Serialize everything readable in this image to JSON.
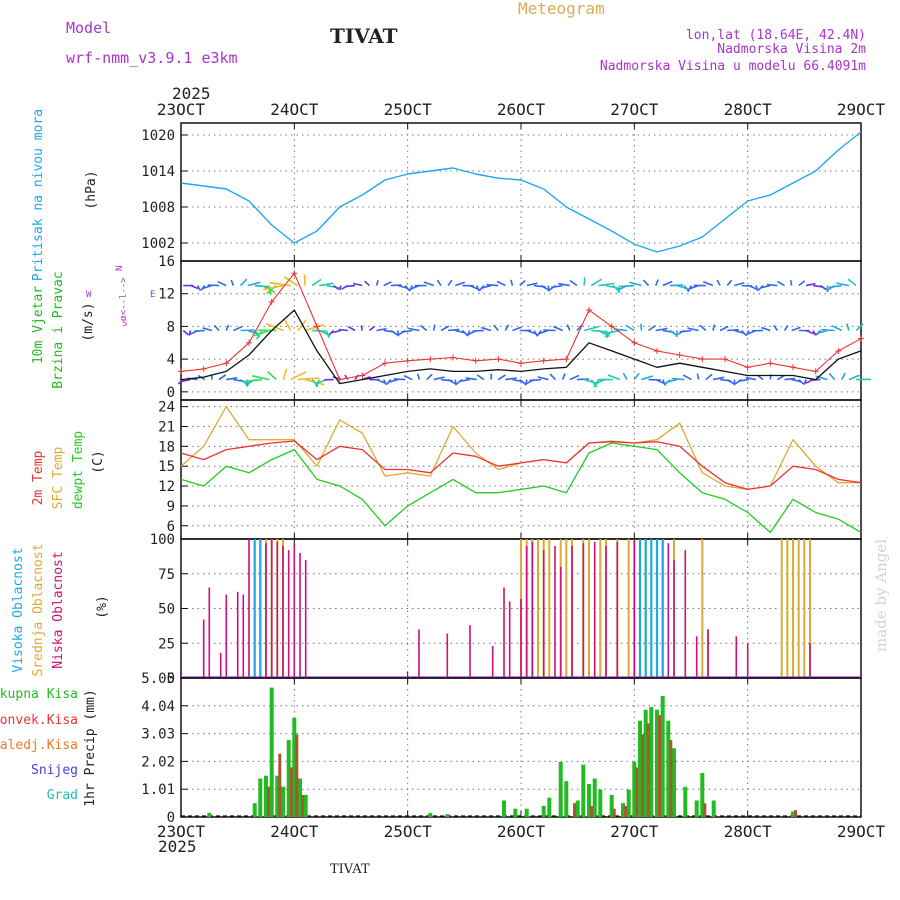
{
  "header": {
    "model_label": "Model",
    "model_name": "wrf-nmm_v3.9.1 e3km",
    "title": "TIVAT",
    "meteogram_label": "Meteogram",
    "coords": "lon,lat (18.64E, 42.4N)",
    "elevation": "Nadmorska Visina 2m",
    "model_elevation": "Nadmorska Visina u modelu 66.4091m",
    "year": "2025",
    "footer_title": "TIVAT",
    "credit": "made by Angel"
  },
  "colors": {
    "pressure": "#1ea8e8",
    "wind_label": "#22bb22",
    "temp2m": "#ee3333",
    "sfc": "#ddaa33",
    "dewpt": "#22cc22",
    "high_cloud": "#1ea8e8",
    "mid_cloud": "#ddaa33",
    "low_cloud": "#cc1177",
    "purple": "#aa33cc",
    "snow": "#4444dd",
    "hail": "#22bbbb",
    "conv": "#ee3333",
    "frz": "#ee7722",
    "total": "#22bb22"
  },
  "chart_data": {
    "type": "meteogram",
    "x_tick_labels": [
      "23OCT",
      "24OCT",
      "25OCT",
      "26OCT",
      "27OCT",
      "28OCT",
      "29OCT"
    ],
    "x_range_days": [
      23,
      29
    ],
    "panels": {
      "pressure": {
        "ylabel": "Pritisak na nivou mora",
        "unit": "(hPa)",
        "yticks": [
          "1020",
          "1014",
          "1008",
          "1002"
        ],
        "ylim": [
          999,
          1022
        ],
        "x": [
          23.0,
          23.2,
          23.4,
          23.6,
          23.8,
          24.0,
          24.2,
          24.4,
          24.6,
          24.8,
          25.0,
          25.2,
          25.4,
          25.6,
          25.8,
          26.0,
          26.2,
          26.4,
          26.6,
          26.8,
          27.0,
          27.2,
          27.4,
          27.6,
          27.8,
          28.0,
          28.2,
          28.4,
          28.6,
          28.8,
          29.0
        ],
        "values": [
          1012,
          1011.5,
          1011,
          1009,
          1005,
          1002,
          1004,
          1008,
          1010,
          1012.5,
          1013.5,
          1014,
          1014.5,
          1013.5,
          1012.8,
          1012.5,
          1011,
          1008,
          1006,
          1004,
          1001.8,
          1000.5,
          1001.5,
          1003,
          1006,
          1009,
          1010,
          1012,
          1014,
          1017.5,
          1020.5
        ]
      },
      "wind": {
        "ylabel1": "10m Vjetar",
        "ylabel2": "Brzina i Pravac",
        "unit": "(m/s)",
        "yticks": [
          "16",
          "12",
          "8",
          "4",
          "0"
        ],
        "ylim": [
          -1,
          16
        ],
        "compass": [
          "N",
          "S",
          "E",
          "W"
        ],
        "compass_note": "α<--l-->",
        "x": [
          23.0,
          23.2,
          23.4,
          23.6,
          23.8,
          24.0,
          24.2,
          24.4,
          24.6,
          24.8,
          25.0,
          25.2,
          25.4,
          25.6,
          25.8,
          26.0,
          26.2,
          26.4,
          26.6,
          26.8,
          27.0,
          27.2,
          27.4,
          27.6,
          27.8,
          28.0,
          28.2,
          28.4,
          28.6,
          28.8,
          29.0
        ],
        "speed": [
          1.5,
          1.8,
          2.5,
          4.5,
          7.5,
          10,
          5,
          1,
          1.5,
          2,
          2.5,
          2.8,
          2.5,
          2.5,
          2.7,
          2.5,
          2.8,
          3,
          6,
          5,
          4,
          3,
          3.5,
          3,
          2.5,
          2,
          2,
          2,
          1.5,
          4,
          5
        ],
        "gust": [
          2.5,
          2.8,
          3.5,
          6,
          11,
          14.5,
          8,
          1.5,
          2,
          3.5,
          3.8,
          4,
          4.2,
          3.8,
          4,
          3.5,
          3.8,
          4,
          10,
          8,
          6,
          5,
          4.5,
          4,
          4,
          3,
          3.5,
          3,
          2.5,
          5,
          6.5
        ]
      },
      "temperature": {
        "labels": [
          "2m Temp",
          "SFC Temp",
          "dewpt Temp"
        ],
        "unit": "(C)",
        "yticks": [
          "24",
          "21",
          "18",
          "15",
          "12",
          "9",
          "6"
        ],
        "ylim": [
          4,
          25
        ],
        "x": [
          23.0,
          23.2,
          23.4,
          23.6,
          23.8,
          24.0,
          24.2,
          24.4,
          24.6,
          24.8,
          25.0,
          25.2,
          25.4,
          25.6,
          25.8,
          26.0,
          26.2,
          26.4,
          26.6,
          26.8,
          27.0,
          27.2,
          27.4,
          27.6,
          27.8,
          28.0,
          28.2,
          28.4,
          28.6,
          28.8,
          29.0
        ],
        "t2m": [
          17,
          16,
          17.5,
          18,
          18.5,
          18.8,
          16,
          18,
          17.5,
          14.5,
          14.5,
          14,
          17,
          16.5,
          15,
          15.5,
          16,
          15.5,
          18.5,
          18.7,
          18.5,
          18.7,
          18,
          15,
          12.5,
          11.5,
          12,
          15,
          14.5,
          13,
          12.5
        ],
        "sfc": [
          15,
          18,
          24,
          19,
          19,
          19,
          15,
          22,
          20,
          13.5,
          14,
          13.5,
          21,
          17,
          14.5,
          15.5,
          16,
          15.5,
          18.5,
          18.8,
          18.5,
          19,
          21.5,
          14,
          12,
          11.5,
          12,
          19,
          15,
          12.5,
          12.5
        ],
        "dewpt": [
          13,
          12,
          15,
          14,
          16,
          17.5,
          13,
          12,
          10,
          6,
          9,
          11,
          13,
          11,
          11,
          11.5,
          12,
          11,
          17,
          18.5,
          18,
          17.5,
          14,
          11,
          10,
          8,
          5,
          10,
          8,
          7,
          5
        ]
      },
      "clouds": {
        "labels": [
          "Visoka Oblacnost",
          "Srednja Oblacnost",
          "Niska Oblacnost"
        ],
        "unit": "(%)",
        "yticks": [
          "100",
          "75",
          "50",
          "25",
          "0"
        ],
        "ylim": [
          0,
          100
        ],
        "mid_bars": [
          [
            23.7,
            100
          ],
          [
            23.75,
            100
          ],
          [
            23.8,
            100
          ],
          [
            23.85,
            100
          ],
          [
            23.9,
            100
          ],
          [
            26.0,
            100
          ],
          [
            26.05,
            100
          ],
          [
            26.1,
            100
          ],
          [
            26.15,
            100
          ],
          [
            26.2,
            100
          ],
          [
            26.25,
            100
          ],
          [
            26.35,
            100
          ],
          [
            26.4,
            100
          ],
          [
            26.45,
            100
          ],
          [
            26.55,
            100
          ],
          [
            26.6,
            100
          ],
          [
            26.7,
            100
          ],
          [
            26.75,
            100
          ],
          [
            26.85,
            100
          ],
          [
            26.95,
            100
          ],
          [
            27.0,
            100
          ],
          [
            27.1,
            100
          ],
          [
            27.2,
            100
          ],
          [
            27.25,
            100
          ],
          [
            27.35,
            100
          ],
          [
            27.6,
            100
          ],
          [
            27.65,
            35
          ],
          [
            28.3,
            100
          ],
          [
            28.35,
            100
          ],
          [
            28.4,
            100
          ],
          [
            28.45,
            100
          ],
          [
            28.5,
            100
          ],
          [
            28.55,
            100
          ]
        ],
        "low_bars": [
          [
            23.2,
            42
          ],
          [
            23.25,
            65
          ],
          [
            23.35,
            18
          ],
          [
            23.4,
            60
          ],
          [
            23.5,
            62
          ],
          [
            23.55,
            60
          ],
          [
            23.6,
            100
          ],
          [
            23.7,
            98
          ],
          [
            23.75,
            97
          ],
          [
            23.8,
            100
          ],
          [
            23.85,
            98
          ],
          [
            23.9,
            95
          ],
          [
            23.95,
            92
          ],
          [
            24.0,
            97
          ],
          [
            24.05,
            90
          ],
          [
            24.1,
            85
          ],
          [
            25.1,
            35
          ],
          [
            25.35,
            32
          ],
          [
            25.55,
            38
          ],
          [
            25.75,
            23
          ],
          [
            25.85,
            65
          ],
          [
            25.9,
            55
          ],
          [
            26.0,
            57
          ],
          [
            26.05,
            95
          ],
          [
            26.1,
            98
          ],
          [
            26.2,
            92
          ],
          [
            26.3,
            95
          ],
          [
            26.35,
            80
          ],
          [
            26.45,
            95
          ],
          [
            26.55,
            97
          ],
          [
            26.65,
            98
          ],
          [
            26.75,
            95
          ],
          [
            26.85,
            98
          ],
          [
            27.0,
            100
          ],
          [
            27.1,
            100
          ],
          [
            27.2,
            95
          ],
          [
            27.3,
            97
          ],
          [
            27.35,
            85
          ],
          [
            27.45,
            92
          ],
          [
            27.55,
            30
          ],
          [
            27.65,
            35
          ],
          [
            27.9,
            30
          ],
          [
            28.0,
            25
          ],
          [
            28.55,
            25
          ]
        ],
        "high_bars": [
          [
            23.65,
            100
          ],
          [
            23.7,
            100
          ],
          [
            27.05,
            100
          ],
          [
            27.1,
            100
          ],
          [
            27.15,
            100
          ],
          [
            27.2,
            100
          ],
          [
            27.25,
            100
          ]
        ]
      },
      "precip": {
        "labels": [
          "Ukupna Kisa",
          "Konvek.Kisa",
          "Zaledj.Kisa",
          "Snijeg",
          "Grad"
        ],
        "unit": "1hr Precip (mm)",
        "yticks": [
          "5.05",
          "4.04",
          "3.03",
          "2.02",
          "1.01",
          "0"
        ],
        "ylim": [
          0,
          5.05
        ],
        "total_bars": [
          [
            23.25,
            0.15
          ],
          [
            23.65,
            0.5
          ],
          [
            23.7,
            1.4
          ],
          [
            23.75,
            1.5
          ],
          [
            23.8,
            4.7
          ],
          [
            23.85,
            1.5
          ],
          [
            23.9,
            1.1
          ],
          [
            23.95,
            2.8
          ],
          [
            24.0,
            3.6
          ],
          [
            24.05,
            1.4
          ],
          [
            24.1,
            0.8
          ],
          [
            25.2,
            0.15
          ],
          [
            25.35,
            0.1
          ],
          [
            25.85,
            0.6
          ],
          [
            25.95,
            0.3
          ],
          [
            26.05,
            0.3
          ],
          [
            26.2,
            0.4
          ],
          [
            26.25,
            0.7
          ],
          [
            26.35,
            2.0
          ],
          [
            26.4,
            1.3
          ],
          [
            26.5,
            0.6
          ],
          [
            26.55,
            1.9
          ],
          [
            26.6,
            1.2
          ],
          [
            26.65,
            1.4
          ],
          [
            26.7,
            1.0
          ],
          [
            26.8,
            0.8
          ],
          [
            26.9,
            0.5
          ],
          [
            26.95,
            1.0
          ],
          [
            27.0,
            2.0
          ],
          [
            27.05,
            3.5
          ],
          [
            27.1,
            3.9
          ],
          [
            27.15,
            4.0
          ],
          [
            27.2,
            3.9
          ],
          [
            27.25,
            4.4
          ],
          [
            27.3,
            3.5
          ],
          [
            27.35,
            2.5
          ],
          [
            27.45,
            1.1
          ],
          [
            27.55,
            0.6
          ],
          [
            27.6,
            1.6
          ],
          [
            27.7,
            0.6
          ],
          [
            28.4,
            0.2
          ]
        ],
        "conv_bars": [
          [
            23.75,
            1.1
          ],
          [
            23.85,
            2.3
          ],
          [
            23.95,
            1.8
          ],
          [
            24.0,
            3.0
          ],
          [
            24.05,
            0.8
          ],
          [
            26.45,
            0.5
          ],
          [
            26.6,
            0.4
          ],
          [
            26.8,
            0.3
          ],
          [
            26.9,
            0.4
          ],
          [
            27.0,
            1.8
          ],
          [
            27.05,
            3.0
          ],
          [
            27.1,
            3.4
          ],
          [
            27.2,
            3.7
          ],
          [
            27.3,
            2.8
          ],
          [
            27.6,
            0.5
          ],
          [
            28.4,
            0.25
          ]
        ]
      }
    }
  }
}
